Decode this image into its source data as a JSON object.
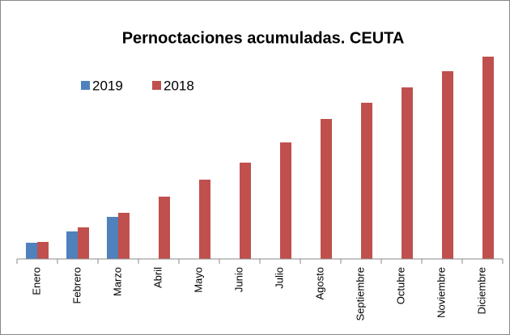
{
  "chart_data": {
    "type": "bar",
    "title": "Pernoctaciones acumuladas. CEUTA",
    "categories": [
      "Enero",
      "Febrero",
      "Marzo",
      "Abril",
      "Mayo",
      "Junio",
      "Julio",
      "Agosto",
      "Septiembre",
      "Octubre",
      "Noviembre",
      "Diciembre"
    ],
    "series": [
      {
        "name": "2019",
        "color": "#4f81bd",
        "values": [
          20,
          34,
          52,
          null,
          null,
          null,
          null,
          null,
          null,
          null,
          null,
          null
        ]
      },
      {
        "name": "2018",
        "color": "#c0504d",
        "values": [
          21,
          39,
          57,
          77,
          98,
          119,
          144,
          173,
          193,
          212,
          232,
          250
        ]
      }
    ],
    "ylim": [
      0,
      260
    ],
    "grid": false,
    "legend": "top-left"
  }
}
